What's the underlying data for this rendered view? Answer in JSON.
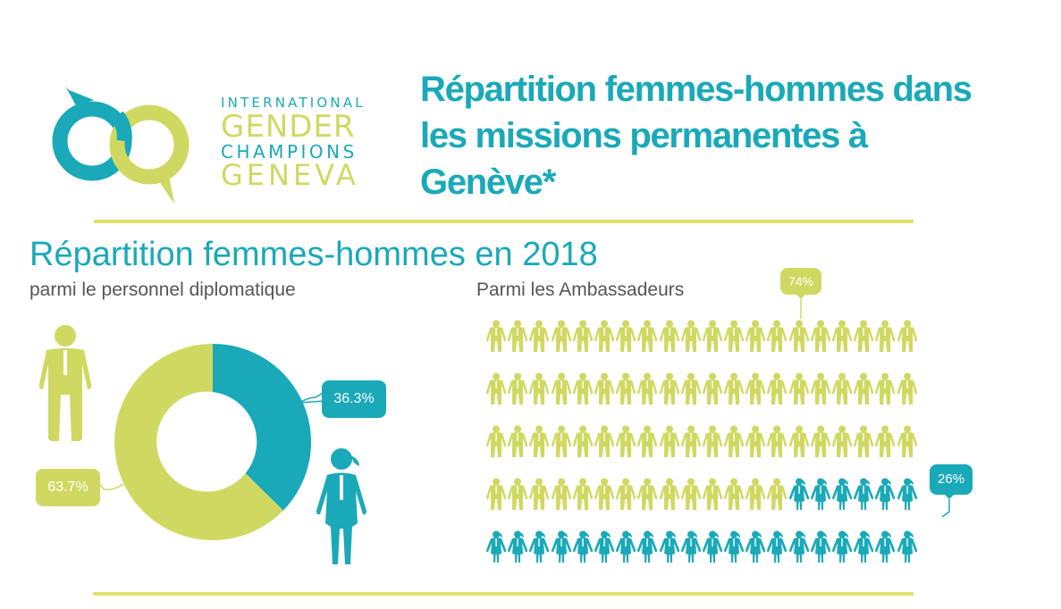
{
  "logo": {
    "line1": "INTERNATIONAL",
    "line2": "GENDER",
    "line3": "CHAMPIONS",
    "line4": "GENEVA",
    "colors": {
      "teal": "#1aa9b8",
      "lime": "#cfd962"
    }
  },
  "header": {
    "title": "Répartition femmes-hommes dans les missions permanentes à Genève*"
  },
  "section": {
    "title": "Répartition femmes-hommes en 2018",
    "left_subtitle": "parmi le personnel diplomatique",
    "right_subtitle": "Parmi les Ambassadeurs"
  },
  "colors": {
    "men": "#cfd962",
    "women": "#1aa9b8",
    "divider": "#dfe36a"
  },
  "chart_data": [
    {
      "type": "pie",
      "title": "parmi le personnel diplomatique",
      "categories": [
        "Hommes",
        "Femmes"
      ],
      "values": [
        63.7,
        36.3
      ],
      "labels": [
        "63.7%",
        "36.3%"
      ],
      "colors": [
        "#cfd962",
        "#1aa9b8"
      ],
      "donut": true,
      "icons": [
        "man-icon",
        "woman-icon"
      ]
    },
    {
      "type": "pictogram",
      "title": "Parmi les Ambassadeurs",
      "categories": [
        "Hommes",
        "Femmes"
      ],
      "values": [
        74,
        26
      ],
      "labels": [
        "74%",
        "26%"
      ],
      "grid": {
        "rows": 5,
        "cols": 20,
        "total": 100
      },
      "colors": [
        "#cfd962",
        "#1aa9b8"
      ]
    }
  ]
}
